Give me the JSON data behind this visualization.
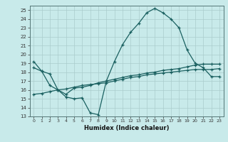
{
  "xlabel": "Humidex (Indice chaleur)",
  "bg_color": "#c8eaea",
  "grid_color": "#b8d8d8",
  "line_color": "#1a6060",
  "xlim": [
    -0.5,
    23.5
  ],
  "ylim": [
    13,
    25.5
  ],
  "yticks": [
    13,
    14,
    15,
    16,
    17,
    18,
    19,
    20,
    21,
    22,
    23,
    24,
    25
  ],
  "xticks": [
    0,
    1,
    2,
    3,
    4,
    5,
    6,
    7,
    8,
    9,
    10,
    11,
    12,
    13,
    14,
    15,
    16,
    17,
    18,
    19,
    20,
    21,
    22,
    23
  ],
  "series1_x": [
    0,
    1,
    2,
    3,
    4,
    5,
    6,
    7,
    8,
    9,
    10,
    11,
    12,
    13,
    14,
    15,
    16,
    17,
    18,
    19,
    20,
    21,
    22,
    23
  ],
  "series1_y": [
    19.2,
    18.1,
    16.5,
    16.0,
    15.2,
    15.0,
    15.1,
    13.4,
    13.2,
    17.0,
    19.2,
    21.1,
    22.5,
    23.5,
    24.7,
    25.2,
    24.7,
    24.0,
    23.0,
    20.5,
    19.0,
    18.5,
    17.5,
    17.5
  ],
  "series2_x": [
    0,
    1,
    2,
    3,
    4,
    5,
    6,
    7,
    8,
    9,
    10,
    11,
    12,
    13,
    14,
    15,
    16,
    17,
    18,
    19,
    20,
    21,
    22,
    23
  ],
  "series2_y": [
    18.5,
    18.1,
    17.8,
    16.0,
    15.5,
    16.2,
    16.3,
    16.5,
    16.8,
    17.0,
    17.2,
    17.4,
    17.6,
    17.7,
    17.9,
    18.0,
    18.2,
    18.3,
    18.4,
    18.6,
    18.8,
    18.9,
    18.9,
    18.9
  ],
  "series3_x": [
    0,
    1,
    2,
    3,
    4,
    5,
    6,
    7,
    8,
    9,
    10,
    11,
    12,
    13,
    14,
    15,
    16,
    17,
    18,
    19,
    20,
    21,
    22,
    23
  ],
  "series3_y": [
    15.5,
    15.6,
    15.8,
    16.0,
    16.1,
    16.3,
    16.5,
    16.6,
    16.7,
    16.8,
    17.0,
    17.2,
    17.4,
    17.5,
    17.7,
    17.8,
    17.9,
    18.0,
    18.1,
    18.2,
    18.3,
    18.3,
    18.3,
    18.4
  ]
}
